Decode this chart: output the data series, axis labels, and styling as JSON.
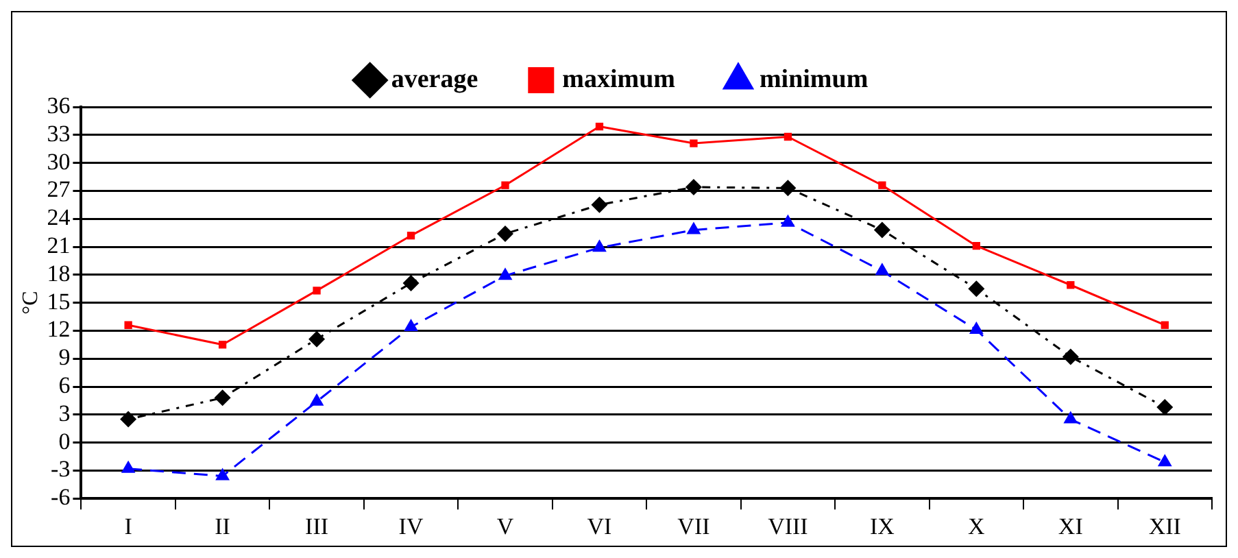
{
  "chart_data": {
    "type": "line",
    "ylabel": "°C",
    "categories": [
      "I",
      "II",
      "III",
      "IV",
      "V",
      "VI",
      "VII",
      "VIII",
      "IX",
      "X",
      "XI",
      "XII"
    ],
    "series": [
      {
        "name": "average",
        "color": "#000000",
        "marker": "diamond",
        "line_style": "dotted",
        "values": [
          2.5,
          4.8,
          11.1,
          17.1,
          22.4,
          25.5,
          27.4,
          27.3,
          22.8,
          16.5,
          9.2,
          3.8
        ]
      },
      {
        "name": "maximum",
        "color": "#ff0000",
        "marker": "square",
        "line_style": "solid",
        "values": [
          12.6,
          10.5,
          16.3,
          22.2,
          27.6,
          33.9,
          32.1,
          32.8,
          27.6,
          21.1,
          16.9,
          12.6
        ]
      },
      {
        "name": "minimum",
        "color": "#0000ff",
        "marker": "triangle",
        "line_style": "dashed",
        "values": [
          -2.8,
          -3.6,
          4.4,
          12.4,
          17.9,
          20.9,
          22.8,
          23.6,
          18.4,
          12.1,
          2.5,
          -2.1
        ]
      }
    ],
    "ylim": [
      -6,
      36
    ],
    "yticks": [
      -6,
      -3,
      0,
      3,
      6,
      9,
      12,
      15,
      18,
      21,
      24,
      27,
      30,
      33,
      36
    ],
    "grid": "y",
    "legend": "top"
  }
}
